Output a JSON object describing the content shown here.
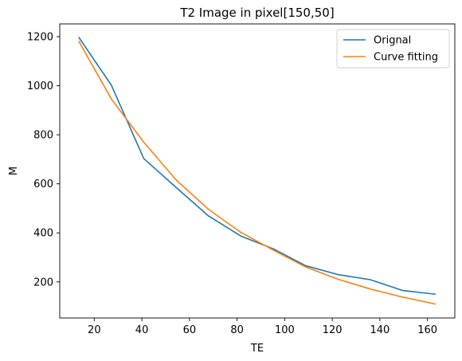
{
  "chart_data": {
    "type": "line",
    "title": "T2 Image in pixel[150,50]",
    "xlabel": "TE",
    "ylabel": "M",
    "xlim": [
      5.5,
      171.5
    ],
    "ylim": [
      53,
      1252
    ],
    "xticks": [
      20,
      40,
      60,
      80,
      100,
      120,
      140,
      160
    ],
    "yticks": [
      200,
      400,
      600,
      800,
      1000,
      1200
    ],
    "grid": false,
    "legend_position": "top-right",
    "series": [
      {
        "name": "Orignal",
        "color": "#1f77b4",
        "x": [
          13.6,
          27.2,
          40.8,
          54.4,
          68.0,
          81.6,
          95.2,
          108.8,
          122.4,
          136.0,
          149.6,
          163.2
        ],
        "y": [
          1196,
          1002,
          703,
          585,
          469,
          387,
          335,
          266,
          230,
          209,
          165,
          150
        ]
      },
      {
        "name": "Curve fitting",
        "color": "#ff7f0e",
        "x": [
          13.6,
          27.2,
          40.8,
          54.4,
          68.0,
          81.6,
          95.2,
          108.8,
          122.4,
          136.0,
          149.6,
          163.2
        ],
        "y": [
          1180,
          946,
          770,
          616,
          496,
          402,
          330,
          261,
          211,
          171,
          138,
          110
        ]
      }
    ]
  }
}
